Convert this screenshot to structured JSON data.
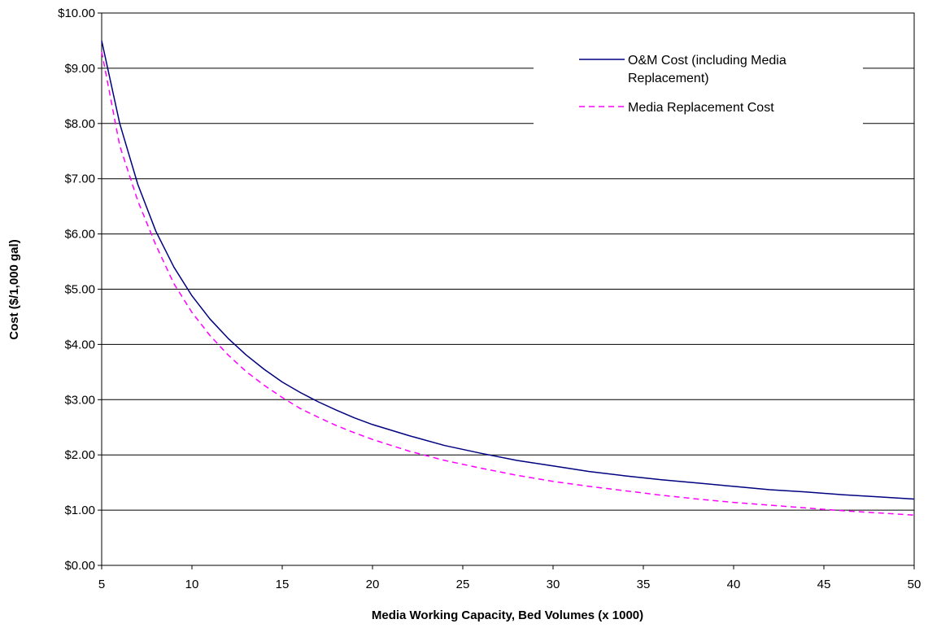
{
  "chart_data": {
    "type": "line",
    "xlabel": "Media Working Capacity, Bed Volumes (x 1000)",
    "ylabel": "Cost ($/1,000 gal)",
    "xlim": [
      5,
      50
    ],
    "ylim": [
      0,
      10
    ],
    "x_ticks": [
      "5",
      "10",
      "15",
      "20",
      "25",
      "30",
      "35",
      "40",
      "45",
      "50"
    ],
    "y_ticks": [
      "$0.00",
      "$1.00",
      "$2.00",
      "$3.00",
      "$4.00",
      "$5.00",
      "$6.00",
      "$7.00",
      "$8.00",
      "$9.00",
      "$10.00"
    ],
    "grid": "horizontal",
    "legend_position": "top-right",
    "x": [
      5,
      6,
      7,
      8,
      9,
      10,
      11,
      12,
      13,
      14,
      15,
      16,
      17,
      18,
      19,
      20,
      22,
      24,
      26,
      28,
      30,
      32,
      34,
      36,
      38,
      40,
      42,
      44,
      46,
      48,
      50
    ],
    "series": [
      {
        "name": "O&M Cost (including Media Replacement)",
        "color": "#000080",
        "style": "solid",
        "values": [
          9.5,
          8.0,
          6.9,
          6.05,
          5.4,
          4.88,
          4.46,
          4.11,
          3.81,
          3.55,
          3.32,
          3.13,
          2.96,
          2.81,
          2.67,
          2.55,
          2.35,
          2.17,
          2.03,
          1.9,
          1.8,
          1.7,
          1.62,
          1.55,
          1.49,
          1.43,
          1.37,
          1.33,
          1.28,
          1.24,
          1.2
        ]
      },
      {
        "name": "Media Replacement Cost",
        "color": "#ff00ff",
        "style": "dashed",
        "values": [
          9.3,
          7.6,
          6.6,
          5.8,
          5.1,
          4.58,
          4.16,
          3.81,
          3.51,
          3.26,
          3.04,
          2.84,
          2.68,
          2.53,
          2.4,
          2.28,
          2.07,
          1.9,
          1.76,
          1.63,
          1.52,
          1.43,
          1.35,
          1.27,
          1.2,
          1.14,
          1.09,
          1.04,
          0.99,
          0.95,
          0.91
        ]
      }
    ]
  }
}
